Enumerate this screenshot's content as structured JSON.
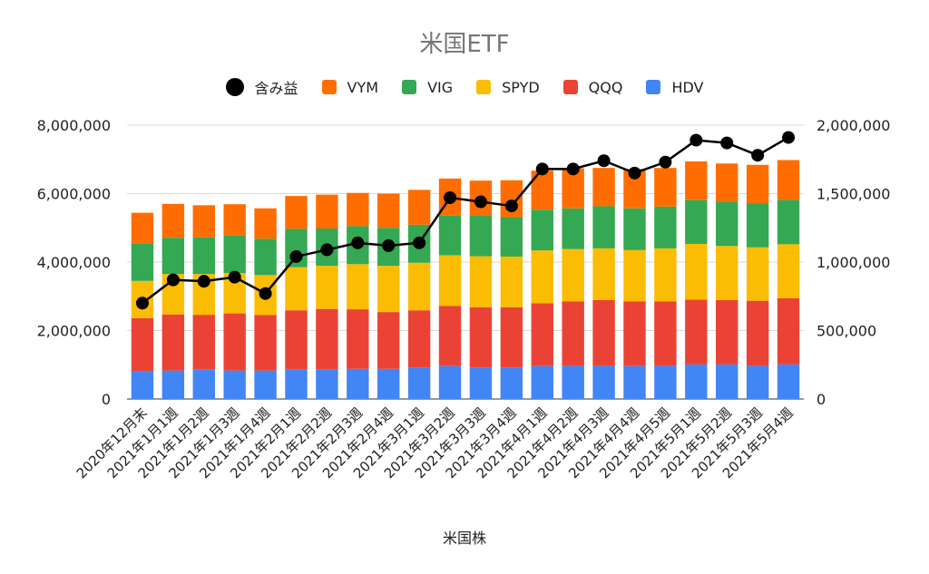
{
  "chart_data": {
    "type": "bar",
    "stacked": true,
    "title": "米国ETF",
    "xlabel": "米国株",
    "ylabel": "",
    "ylim": [
      0,
      8000000
    ],
    "y2lim": [
      0,
      2000000
    ],
    "yticks": [
      "0",
      "2,000,000",
      "4,000,000",
      "6,000,000",
      "8,000,000"
    ],
    "y2ticks": [
      "0",
      "500,000",
      "1,000,000",
      "1,500,000",
      "2,000,000"
    ],
    "grid": true,
    "legend_position": "top",
    "categories": [
      "2020年12月末",
      "2021年1月1週",
      "2021年1月2週",
      "2021年1月3週",
      "2021年1月4週",
      "2021年2月1週",
      "2021年2月2週",
      "2021年2月3週",
      "2021年2月4週",
      "2021年3月1週",
      "2021年3月2週",
      "2021年3月3週",
      "2021年3月4週",
      "2021年4月1週",
      "2021年4月2週",
      "2021年4月3週",
      "2021年4月4週",
      "2021年4月5週",
      "2021年5月1週",
      "2021年5月2週",
      "2021年5月3週",
      "2021年5月4週"
    ],
    "series": [
      {
        "name": "HDV",
        "color": "#4285F4",
        "values": [
          820000,
          830000,
          870000,
          830000,
          830000,
          870000,
          870000,
          880000,
          880000,
          920000,
          960000,
          920000,
          920000,
          960000,
          970000,
          970000,
          960000,
          970000,
          1010000,
          1010000,
          970000,
          1010000
        ]
      },
      {
        "name": "QQQ",
        "color": "#EA4335",
        "values": [
          1540000,
          1640000,
          1590000,
          1670000,
          1620000,
          1720000,
          1760000,
          1740000,
          1660000,
          1670000,
          1760000,
          1760000,
          1760000,
          1840000,
          1880000,
          1920000,
          1890000,
          1880000,
          1890000,
          1880000,
          1900000,
          1930000
        ]
      },
      {
        "name": "SPYD",
        "color": "#FBBC04",
        "values": [
          1090000,
          1180000,
          1190000,
          1180000,
          1170000,
          1260000,
          1260000,
          1320000,
          1350000,
          1390000,
          1480000,
          1490000,
          1480000,
          1540000,
          1530000,
          1510000,
          1500000,
          1550000,
          1630000,
          1580000,
          1560000,
          1580000
        ]
      },
      {
        "name": "VIG",
        "color": "#34A853",
        "values": [
          1090000,
          1060000,
          1070000,
          1090000,
          1060000,
          1120000,
          1090000,
          1110000,
          1110000,
          1110000,
          1160000,
          1180000,
          1150000,
          1190000,
          1190000,
          1230000,
          1220000,
          1220000,
          1280000,
          1290000,
          1290000,
          1300000
        ]
      },
      {
        "name": "VYM",
        "color": "#FF6D01",
        "values": [
          900000,
          990000,
          940000,
          920000,
          890000,
          960000,
          990000,
          970000,
          1000000,
          1020000,
          1080000,
          1030000,
          1080000,
          1140000,
          1170000,
          1120000,
          1150000,
          1130000,
          1130000,
          1120000,
          1120000,
          1160000
        ]
      }
    ],
    "line_series": {
      "name": "含み益",
      "color": "#000000",
      "axis": "right",
      "values": [
        700000,
        870000,
        860000,
        890000,
        770000,
        1040000,
        1090000,
        1140000,
        1120000,
        1140000,
        1470000,
        1440000,
        1410000,
        1680000,
        1680000,
        1740000,
        1650000,
        1730000,
        1890000,
        1870000,
        1780000,
        1910000
      ]
    }
  }
}
